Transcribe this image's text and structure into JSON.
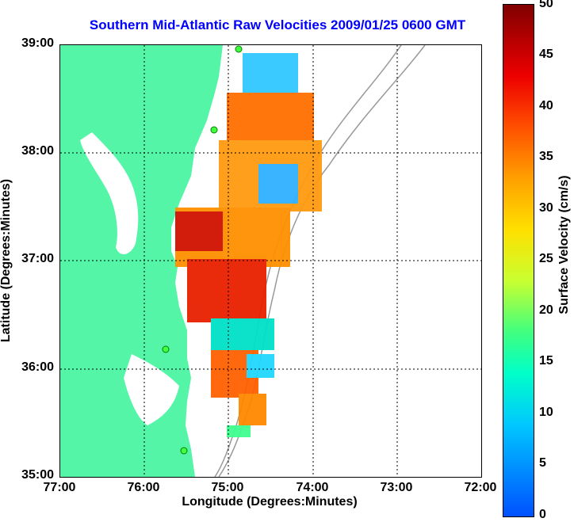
{
  "title": "Southern Mid-Atlantic Raw Velocities 2009/01/25 0600 GMT",
  "axes": {
    "xlabel": "Longitude (Degrees:Minutes)",
    "ylabel": "Latitude (Degrees:Minutes)",
    "xticks": [
      "77:00",
      "76:00",
      "75:00",
      "74:00",
      "73:00",
      "72:00"
    ],
    "yticks": [
      "39:00",
      "38:00",
      "37:00",
      "36:00",
      "35:00"
    ]
  },
  "colorbar": {
    "label": "Surface Velocity (cm/s)",
    "ticks": [
      "50",
      "45",
      "40",
      "35",
      "30",
      "25",
      "20",
      "15",
      "10",
      "5",
      "0"
    ],
    "range": [
      0,
      50
    ],
    "colors": {
      "low": "#0050ff",
      "mid": "#ffe000",
      "high": "#800000",
      "land": "#55f5a8"
    }
  },
  "map": {
    "lon_range": [
      -77.0,
      -72.0
    ],
    "lat_range": [
      35.0,
      39.0
    ],
    "grid": true,
    "land_color": "#55f5a8"
  }
}
